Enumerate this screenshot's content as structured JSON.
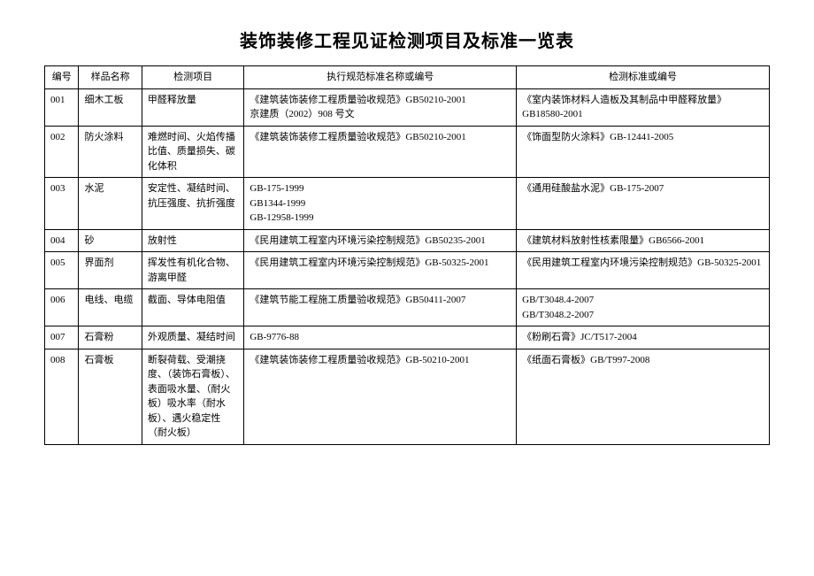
{
  "title": "装饰装修工程见证检测项目及标准一览表",
  "headers": {
    "id": "编号",
    "sample": "样品名称",
    "test": "检测项目",
    "standard": "执行规范标准名称或编号",
    "testref": "检测标准或编号"
  },
  "rows": [
    {
      "id": "001",
      "sample": "细木工板",
      "test": "甲醛释放量",
      "standard": "《建筑装饰装修工程质量验收规范》GB50210-2001\n京建质（2002）908 号文",
      "testref": "《室内装饰材料人造板及其制品中甲醛释放量》GB18580-2001"
    },
    {
      "id": "002",
      "sample": "防火涂料",
      "test": "难燃时间、火焰传播比值、质量损失、碳化体积",
      "standard": "《建筑装饰装修工程质量验收规范》GB50210-2001",
      "testref": "《饰面型防火涂料》GB-12441-2005"
    },
    {
      "id": "003",
      "sample": "水泥",
      "test": "安定性、凝结时间、抗压强度、抗折强度",
      "standard": "GB-175-1999\nGB1344-1999\nGB-12958-1999",
      "testref": "《通用硅酸盐水泥》GB-175-2007"
    },
    {
      "id": "004",
      "sample": "砂",
      "test": "放射性",
      "standard": "《民用建筑工程室内环境污染控制规范》GB50235-2001",
      "testref": "《建筑材料放射性核素限量》GB6566-2001"
    },
    {
      "id": "005",
      "sample": "界面剂",
      "test": "挥发性有机化合物、游离甲醛",
      "standard": "《民用建筑工程室内环境污染控制规范》GB-50325-2001",
      "testref": "《民用建筑工程室内环境污染控制规范》GB-50325-2001"
    },
    {
      "id": "006",
      "sample": "电线、电缆",
      "test": "截面、导体电阻值",
      "standard": "《建筑节能工程施工质量验收规范》GB50411-2007",
      "testref": "GB/T3048.4-2007\nGB/T3048.2-2007"
    },
    {
      "id": "007",
      "sample": "石膏粉",
      "test": "外观质量、凝结时间",
      "standard": "GB-9776-88",
      "testref": "《粉刷石膏》JC/T517-2004"
    },
    {
      "id": "008",
      "sample": "石膏板",
      "test": "断裂荷载、受潮挠度、（装饰石膏板）、表面吸水量、（耐火板）吸水率（耐水板）、遇火稳定性（耐火板）",
      "standard": "《建筑装饰装修工程质量验收规范》GB-50210-2001",
      "testref": "《纸面石膏板》GB/T997-2008"
    }
  ],
  "style": {
    "background_color": "#ffffff",
    "border_color": "#000000",
    "title_fontsize": 20,
    "cell_fontsize": 11,
    "font_family": "SimSun",
    "col_widths": {
      "id": 35,
      "sample": 65,
      "test": 105,
      "standard": 280,
      "testref": 260
    }
  }
}
